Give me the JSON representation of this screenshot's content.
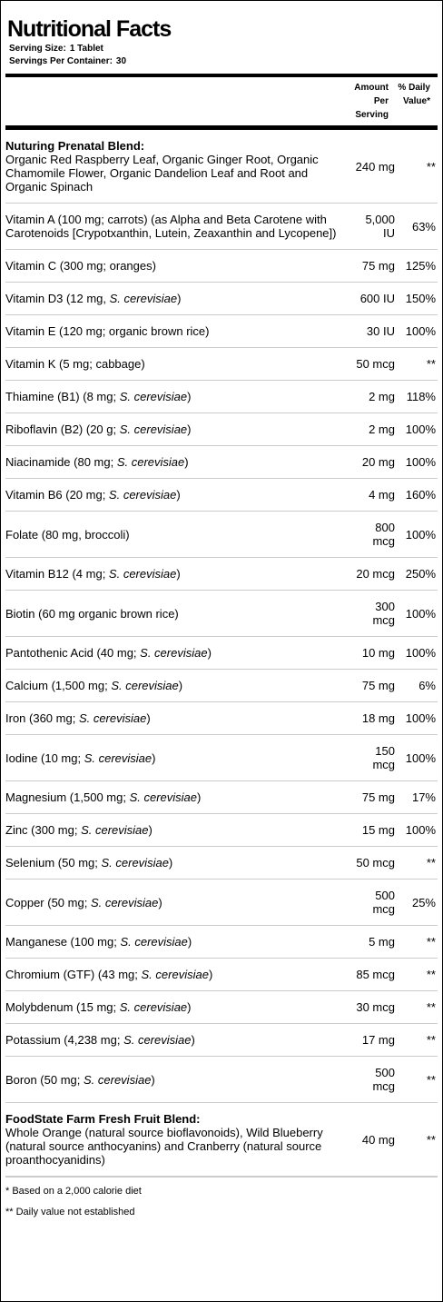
{
  "header": {
    "title": "Nutritional Facts",
    "serving_size_label": "Serving Size:",
    "serving_size": "1 Tablet",
    "servings_label": "Servings Per Container:",
    "servings": "30"
  },
  "columns": {
    "amount": "Amount Per Serving",
    "dv": "% Daily Value*"
  },
  "rows": [
    {
      "title": "Nuturing Prenatal Blend:",
      "name": [
        "Organic Red Raspberry Leaf, Organic Ginger Root, Organic Chamomile Flower, Organic Dandelion Leaf and Root and Organic Spinach"
      ],
      "amount": "240 mg",
      "dv": "**"
    },
    {
      "name": [
        "Vitamin A (100 mg; carrots) (as Alpha and Beta Carotene with Carotenoids [Crypotxanthin, Lutein, Zeaxanthin and Lycopene])"
      ],
      "amount": "5,000 IU",
      "dv": "63%"
    },
    {
      "name": [
        "Vitamin C (300 mg; oranges)"
      ],
      "amount": "75 mg",
      "dv": "125%"
    },
    {
      "name": [
        "Vitamin D3 (12 mg, ",
        "S. cerevisiae",
        ")"
      ],
      "amount": "600 IU",
      "dv": "150%"
    },
    {
      "name": [
        "Vitamin E (120 mg; organic brown rice)"
      ],
      "amount": "30 IU",
      "dv": "100%"
    },
    {
      "name": [
        "Vitamin K (5 mg; cabbage)"
      ],
      "amount": "50 mcg",
      "dv": "**"
    },
    {
      "name": [
        "Thiamine (B1) (8 mg; ",
        "S. cerevisiae",
        ")"
      ],
      "amount": "2 mg",
      "dv": "118%"
    },
    {
      "name": [
        "Riboflavin (B2) (20 g; ",
        "S. cerevisiae",
        ")"
      ],
      "amount": "2 mg",
      "dv": "100%"
    },
    {
      "name": [
        "Niacinamide (80 mg; ",
        "S. cerevisiae",
        ")"
      ],
      "amount": "20 mg",
      "dv": "100%"
    },
    {
      "name": [
        "Vitamin B6 (20 mg; ",
        "S. cerevisiae",
        ")"
      ],
      "amount": "4 mg",
      "dv": "160%"
    },
    {
      "name": [
        "Folate (80 mg, broccoli)"
      ],
      "amount": "800 mcg",
      "dv": "100%"
    },
    {
      "name": [
        "Vitamin B12 (4 mg; ",
        "S. cerevisiae",
        ")"
      ],
      "amount": "20 mcg",
      "dv": "250%"
    },
    {
      "name": [
        "Biotin (60 mg organic brown rice)"
      ],
      "amount": "300 mcg",
      "dv": "100%"
    },
    {
      "name": [
        "Pantothenic Acid (40 mg; ",
        "S. cerevisiae",
        ")"
      ],
      "amount": "10 mg",
      "dv": "100%"
    },
    {
      "name": [
        "Calcium (1,500 mg; ",
        "S. cerevisiae",
        ")"
      ],
      "amount": "75 mg",
      "dv": "6%"
    },
    {
      "name": [
        "Iron (360 mg; ",
        "S. cerevisiae",
        ")"
      ],
      "amount": "18 mg",
      "dv": "100%"
    },
    {
      "name": [
        "Iodine (10 mg; ",
        "S. cerevisiae",
        ")"
      ],
      "amount": "150 mcg",
      "dv": "100%"
    },
    {
      "name": [
        "Magnesium (1,500 mg; ",
        "S. cerevisiae",
        ")"
      ],
      "amount": "75 mg",
      "dv": "17%"
    },
    {
      "name": [
        "Zinc (300 mg; ",
        "S. cerevisiae",
        ")"
      ],
      "amount": "15 mg",
      "dv": "100%"
    },
    {
      "name": [
        "Selenium (50 mg; ",
        "S. cerevisiae",
        ")"
      ],
      "amount": "50 mcg",
      "dv": "**"
    },
    {
      "name": [
        "Copper (50 mg; ",
        "S. cerevisiae",
        ")"
      ],
      "amount": "500 mcg",
      "dv": "25%"
    },
    {
      "name": [
        "Manganese (100 mg; ",
        "S. cerevisiae",
        ")"
      ],
      "amount": "5 mg",
      "dv": "**"
    },
    {
      "name": [
        "Chromium (GTF) (43 mg; ",
        "S. cerevisiae",
        ")"
      ],
      "amount": "85 mcg",
      "dv": "**"
    },
    {
      "name": [
        "Molybdenum (15 mg; ",
        "S. cerevisiae",
        ")"
      ],
      "amount": "30 mcg",
      "dv": "**"
    },
    {
      "name": [
        "Potassium (4,238 mg; ",
        "S. cerevisiae",
        ")"
      ],
      "amount": "17 mg",
      "dv": "**"
    },
    {
      "name": [
        "Boron (50 mg; ",
        "S. cerevisiae",
        ")"
      ],
      "amount": "500 mcg",
      "dv": "**"
    },
    {
      "title": "FoodState Farm Fresh Fruit Blend:",
      "name": [
        "Whole Orange (natural source bioflavonoids), Wild Blueberry (natural source anthocyanins) and Cranberry (natural source proanthocyanidins)"
      ],
      "amount": "40 mg",
      "dv": "**"
    }
  ],
  "footnotes": [
    "* Based on a 2,000 calorie diet",
    "** Daily value not established"
  ]
}
